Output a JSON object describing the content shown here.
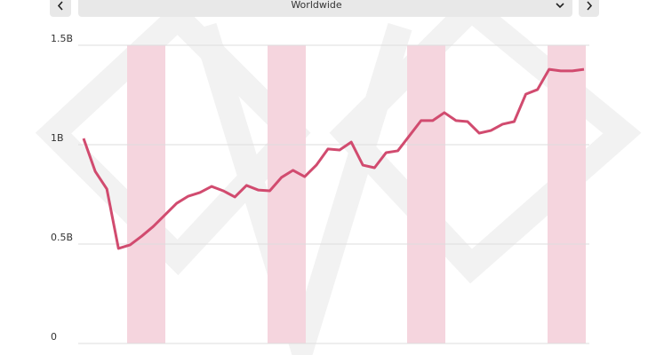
{
  "filter": {
    "region": "Worldwide"
  },
  "chart_data": {
    "type": "line",
    "series": [
      {
        "color": "#d14b6f",
        "values": [
          1.031,
          0.866,
          0.777,
          0.478,
          0.496,
          0.54,
          0.589,
          0.647,
          0.705,
          0.741,
          0.759,
          0.79,
          0.768,
          0.737,
          0.795,
          0.772,
          0.768,
          0.835,
          0.871,
          0.839,
          0.897,
          0.978,
          0.973,
          1.013,
          0.897,
          0.884,
          0.96,
          0.969,
          1.045,
          1.121,
          1.121,
          1.161,
          1.121,
          1.116,
          1.058,
          1.071,
          1.103,
          1.116,
          1.254,
          1.277,
          1.379,
          1.371,
          1.371,
          1.379
        ]
      }
    ],
    "ylim": [
      0,
      1.5
    ],
    "yticks": [
      0,
      {
        "value": 0.5,
        "label": "0.5B"
      },
      {
        "value": 1,
        "label": "1B"
      },
      {
        "value": 1.5,
        "label": "1.5B"
      }
    ],
    "grid": true
  }
}
